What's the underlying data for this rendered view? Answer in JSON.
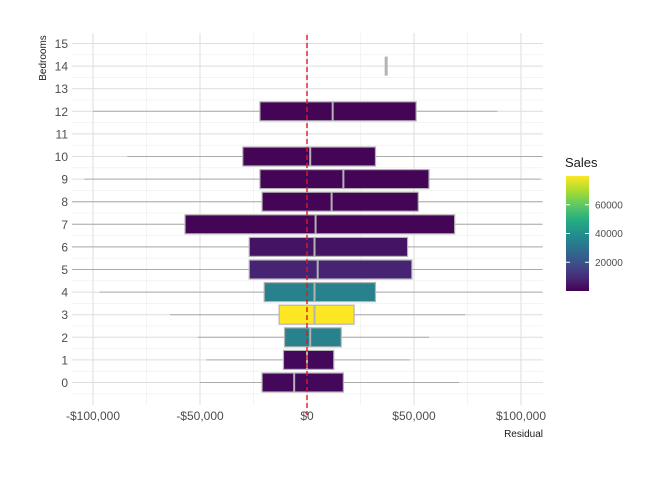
{
  "chart_data": {
    "type": "boxplot",
    "orientation": "horizontal",
    "xlabel": "Residual",
    "ylabel": "Bedrooms",
    "xlim": [
      -110000,
      110000
    ],
    "x_ticks": [
      -100000,
      -50000,
      0,
      50000,
      100000
    ],
    "x_tick_labels": [
      "-$100,000",
      "-$50,000",
      "$0",
      "$50,000",
      "$100,000"
    ],
    "y_categories": [
      "0",
      "1",
      "2",
      "3",
      "4",
      "5",
      "6",
      "7",
      "8",
      "9",
      "10",
      "11",
      "12",
      "13",
      "14",
      "15"
    ],
    "reference_line": {
      "x": 0,
      "color": "#e8141c",
      "style": "dashed"
    },
    "grid": true,
    "legend": {
      "title": "Sales",
      "position": "right",
      "min": 0,
      "max": 80000,
      "ticks": [
        20000,
        40000,
        60000
      ],
      "tick_labels": [
        "20000",
        "40000",
        "60000"
      ],
      "colormap": "viridis"
    },
    "boxes": [
      {
        "bedrooms": "0",
        "whisker_low": -50000,
        "q1": -21000,
        "median": -6000,
        "q3": 17000,
        "whisker_high": 71000,
        "sales": 1500
      },
      {
        "bedrooms": "1",
        "whisker_low": -47000,
        "q1": -11000,
        "median": 0,
        "q3": 12500,
        "whisker_high": 48000,
        "sales": 1500
      },
      {
        "bedrooms": "2",
        "whisker_low": -51000,
        "q1": -10500,
        "median": 1500,
        "q3": 16000,
        "whisker_high": 57000,
        "sales": 35000
      },
      {
        "bedrooms": "3",
        "whisker_low": -64000,
        "q1": -13000,
        "median": 3500,
        "q3": 22000,
        "whisker_high": 74000,
        "sales": 80000
      },
      {
        "bedrooms": "4",
        "whisker_low": -97000,
        "q1": -20000,
        "median": 3500,
        "q3": 32000,
        "whisker_high": 110000,
        "sales": 35000
      },
      {
        "bedrooms": "5",
        "whisker_low": -110000,
        "q1": -27000,
        "median": 5000,
        "q3": 49000,
        "whisker_high": 110000,
        "sales": 8000
      },
      {
        "bedrooms": "6",
        "whisker_low": -110000,
        "q1": -27000,
        "median": 3500,
        "q3": 47000,
        "whisker_high": 110000,
        "sales": 4000
      },
      {
        "bedrooms": "7",
        "whisker_low": -110000,
        "q1": -57000,
        "median": 4000,
        "q3": 69000,
        "whisker_high": 110000,
        "sales": 800
      },
      {
        "bedrooms": "8",
        "whisker_low": -110000,
        "q1": -21000,
        "median": 11500,
        "q3": 52000,
        "whisker_high": 110000,
        "sales": 800
      },
      {
        "bedrooms": "9",
        "whisker_low": -104000,
        "q1": -22000,
        "median": 17000,
        "q3": 57000,
        "whisker_high": 109000,
        "sales": 800
      },
      {
        "bedrooms": "10",
        "whisker_low": -84000,
        "q1": -30000,
        "median": 1500,
        "q3": 32000,
        "whisker_high": 110000,
        "sales": 800
      },
      {
        "bedrooms": "12",
        "whisker_low": -100000,
        "q1": -22000,
        "median": 12000,
        "q3": 51000,
        "whisker_high": 89000,
        "sales": 800
      },
      {
        "bedrooms": "14",
        "whisker_low": 37000,
        "q1": 37000,
        "median": 37000,
        "q3": 37000,
        "whisker_high": 37000,
        "sales": 800
      }
    ]
  }
}
